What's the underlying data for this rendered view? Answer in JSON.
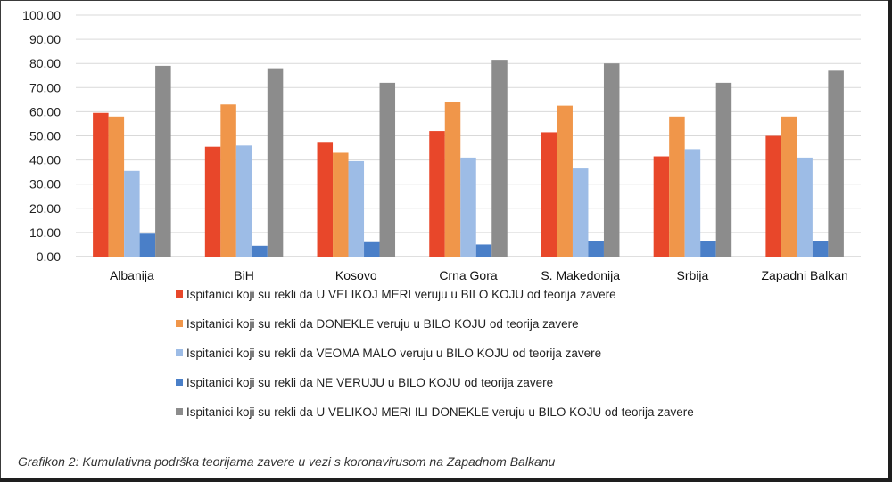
{
  "chart_data": {
    "type": "bar",
    "categories": [
      "Albanija",
      "BiH",
      "Kosovo",
      "Crna Gora",
      "S. Makedonija",
      "Srbija",
      "Zapadni Balkan"
    ],
    "ylim": [
      0,
      100
    ],
    "yticks": [
      "0.00",
      "10.00",
      "20.00",
      "30.00",
      "40.00",
      "50.00",
      "60.00",
      "70.00",
      "80.00",
      "90.00",
      "100.00"
    ],
    "grid": true,
    "legend_position": "bottom",
    "series": [
      {
        "name": "Ispitanici koji su rekli da U VELIKOJ MERI veruju u BILO KOJU od teorija zavere",
        "color": "#E8472A",
        "values": [
          59.5,
          45.5,
          47.5,
          52.0,
          51.5,
          41.5,
          50.0
        ]
      },
      {
        "name": "Ispitanici koji su rekli da DONEKLE veruju u BILO KOJU od teorija zavere",
        "color": "#F0964A",
        "values": [
          58.0,
          63.0,
          43.0,
          64.0,
          62.5,
          58.0,
          58.0
        ]
      },
      {
        "name": "Ispitanici koji su rekli da VEOMA MALO veruju u BILO KOJU od teorija zavere",
        "color": "#9DBCE6",
        "values": [
          35.5,
          46.0,
          39.5,
          41.0,
          36.5,
          44.5,
          41.0
        ]
      },
      {
        "name": "Ispitanici koji su rekli da NE VERUJU u BILO KOJU od teorija zavere",
        "color": "#4A7FC8",
        "values": [
          9.5,
          4.5,
          6.0,
          5.0,
          6.5,
          6.5,
          6.5
        ]
      },
      {
        "name": "Ispitanici koji su rekli da U VELIKOJ MERI ILI DONEKLE veruju u BILO KOJU od teorija zavere",
        "color": "#8C8C8C",
        "values": [
          79.0,
          78.0,
          72.0,
          81.5,
          80.0,
          72.0,
          77.0
        ]
      }
    ]
  },
  "caption": "Grafikon 2: Kumulativna podrška teorijama zavere u vezi s koronavirusom na Zapadnom Balkanu"
}
